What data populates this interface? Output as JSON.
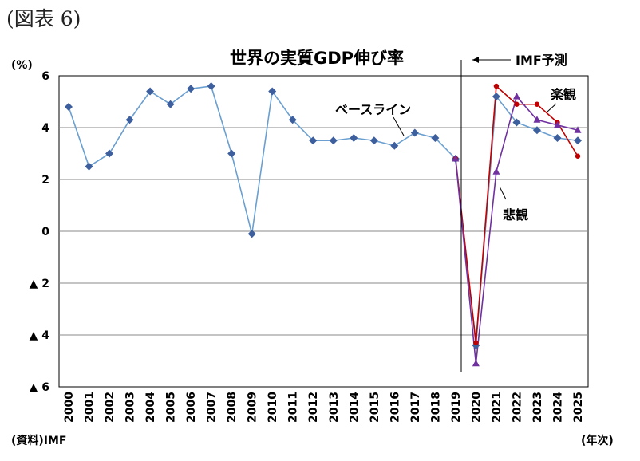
{
  "figure_label": "(図表 6)",
  "source": "(資料)IMF",
  "chart_data": {
    "type": "line",
    "title": "世界の実質GDP伸び率",
    "ylabel": "(%)",
    "xlabel": "(年次)",
    "ylim": [
      -6,
      6
    ],
    "yticks": [
      -6,
      -4,
      -2,
      0,
      2,
      4,
      6
    ],
    "ytick_labels": [
      "▲ 6",
      "▲ 4",
      "▲ 2",
      "0",
      "2",
      "4",
      "6"
    ],
    "grid": true,
    "categories": [
      "2000",
      "2001",
      "2002",
      "2003",
      "2004",
      "2005",
      "2006",
      "2007",
      "2008",
      "2009",
      "2010",
      "2011",
      "2012",
      "2013",
      "2014",
      "2015",
      "2016",
      "2017",
      "2018",
      "2019",
      "2020",
      "2021",
      "2022",
      "2023",
      "2024",
      "2025"
    ],
    "series": [
      {
        "name": "ベースライン",
        "color": "#3d5f9e",
        "line_color": "#6a9fd0",
        "marker": "diamond",
        "x": [
          "2000",
          "2001",
          "2002",
          "2003",
          "2004",
          "2005",
          "2006",
          "2007",
          "2008",
          "2009",
          "2010",
          "2011",
          "2012",
          "2013",
          "2014",
          "2015",
          "2016",
          "2017",
          "2018",
          "2019",
          "2020",
          "2021",
          "2022",
          "2023",
          "2024",
          "2025"
        ],
        "values": [
          4.8,
          2.5,
          3.0,
          4.3,
          5.4,
          4.9,
          5.5,
          5.6,
          3.0,
          -0.1,
          5.4,
          4.3,
          3.5,
          3.5,
          3.6,
          3.5,
          3.3,
          3.8,
          3.6,
          2.8,
          -4.4,
          5.2,
          4.2,
          3.9,
          3.6,
          3.5
        ]
      },
      {
        "name": "楽観",
        "color": "#c00000",
        "line_color": "#c00000",
        "marker": "circle",
        "x": [
          "2019",
          "2020",
          "2021",
          "2022",
          "2023",
          "2024",
          "2025"
        ],
        "values": [
          2.8,
          -4.3,
          5.6,
          4.9,
          4.9,
          4.2,
          2.9
        ]
      },
      {
        "name": "悲観",
        "color": "#7030a0",
        "line_color": "#7030a0",
        "marker": "triangle",
        "x": [
          "2019",
          "2020",
          "2021",
          "2022",
          "2023",
          "2024",
          "2025"
        ],
        "values": [
          2.8,
          -5.1,
          2.3,
          5.2,
          4.3,
          4.1,
          3.9
        ]
      }
    ],
    "annotations": [
      {
        "text": "IMF予測",
        "at": "2019"
      },
      {
        "text": "ベースライン",
        "at": "2017"
      },
      {
        "text": "楽観",
        "at": "2025"
      },
      {
        "text": "悲観",
        "at": "2021"
      }
    ]
  }
}
